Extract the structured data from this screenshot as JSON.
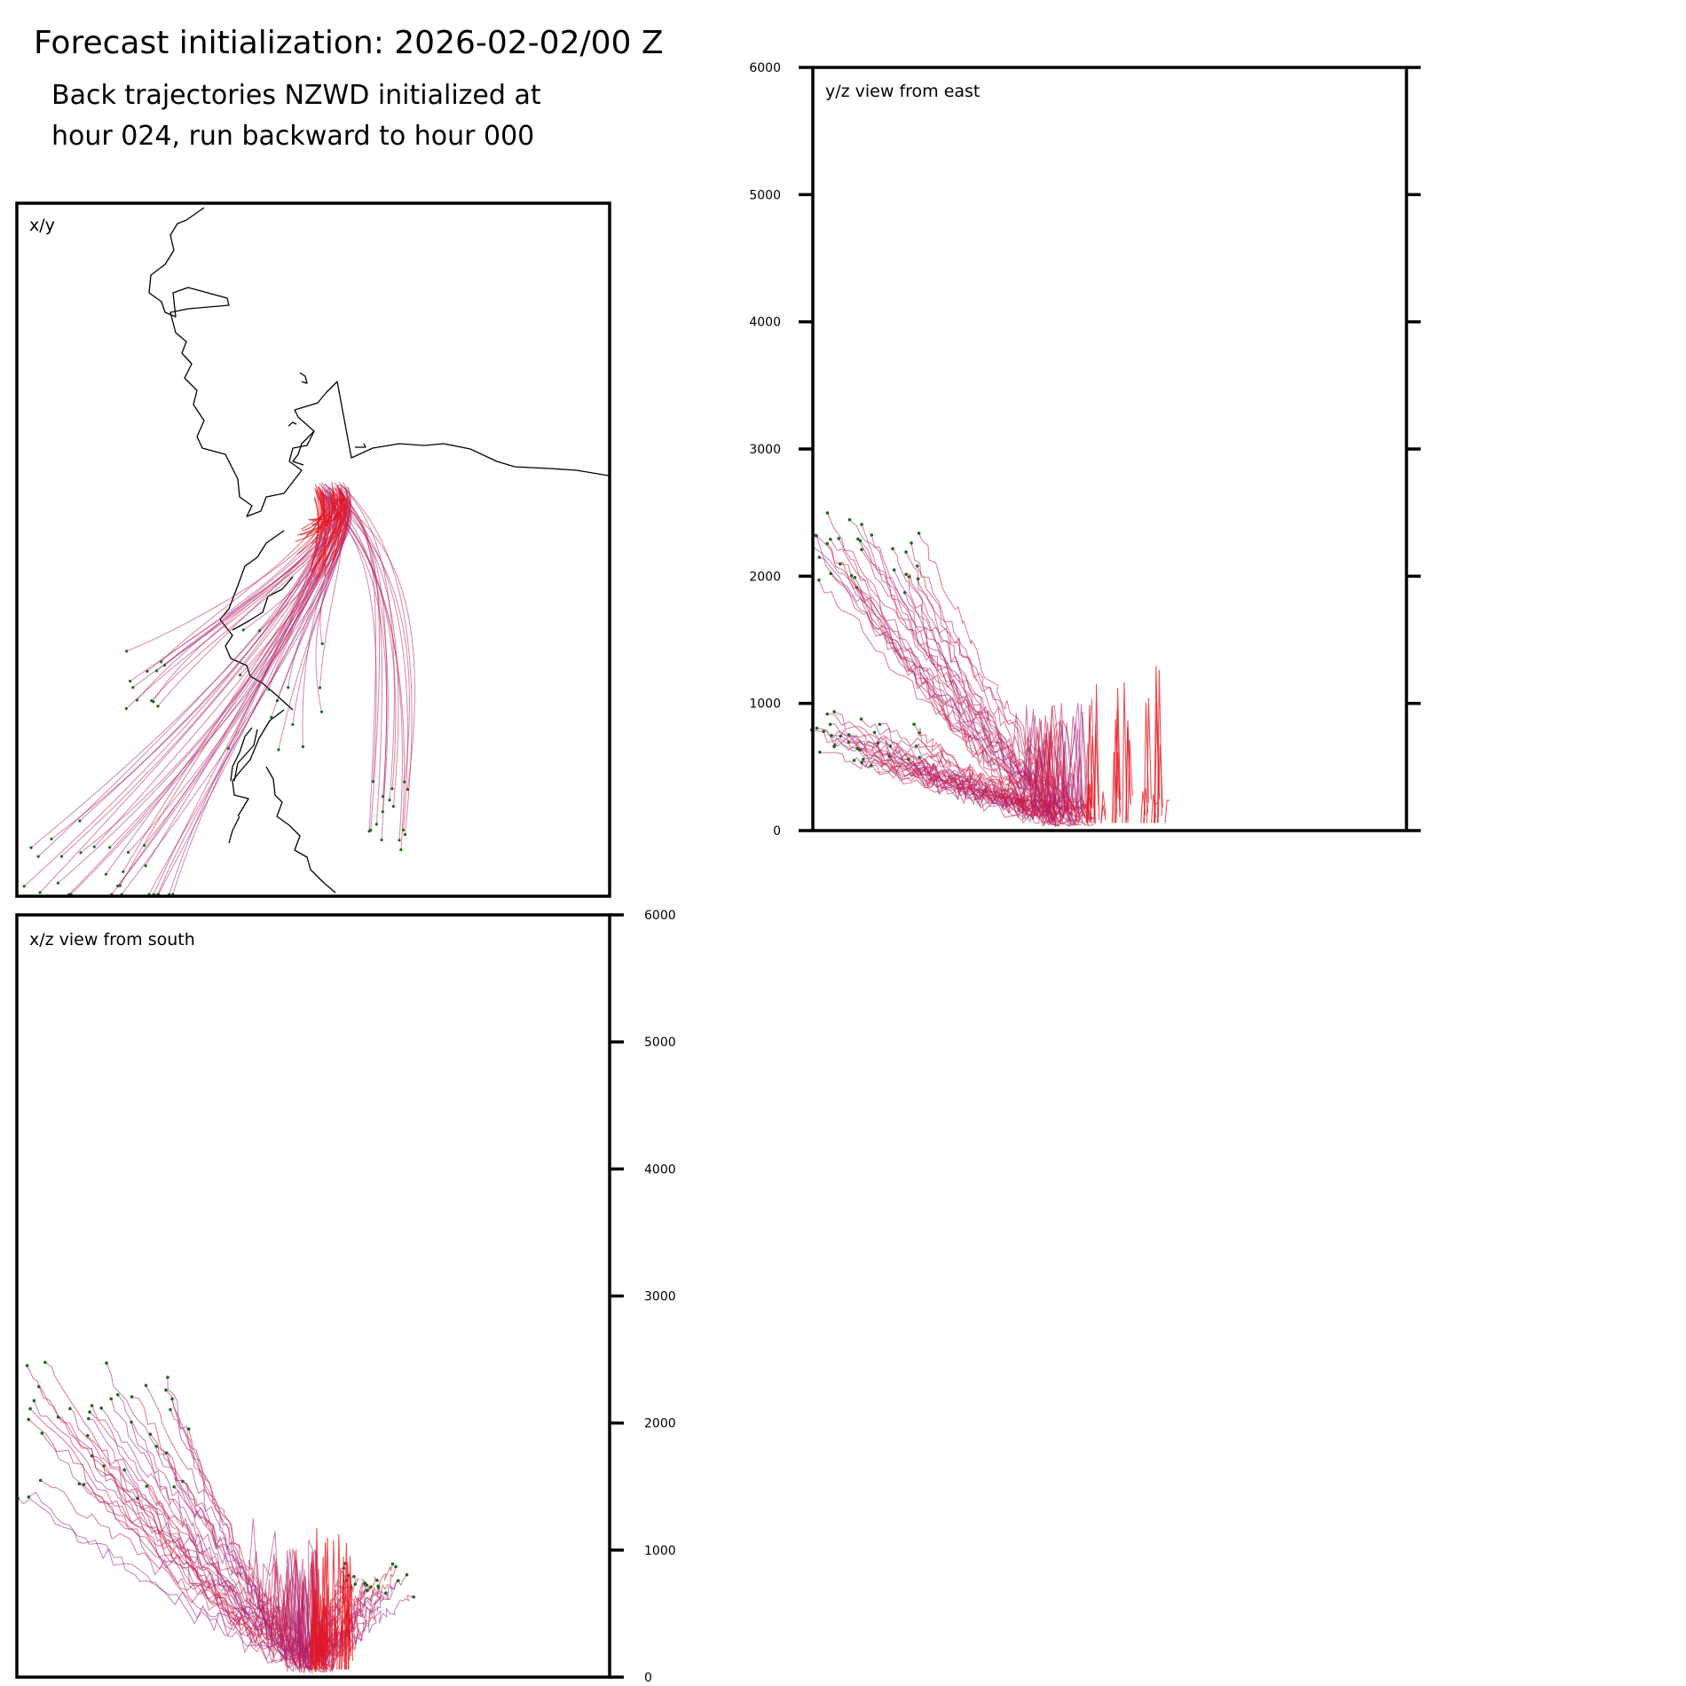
{
  "header": {
    "title": "Forecast initialization: 2026-02-02/00 Z",
    "subtitle_line1": "Back trajectories NZWD initialized at",
    "subtitle_line2": "hour 024, run backward to hour 000"
  },
  "colors": {
    "trajectory_start": "#e8141c",
    "trajectory_end": "#8e2aa0",
    "endpoint": "#1b6b1b",
    "coastline": "#000000",
    "frame": "#000000"
  },
  "chart_data": [
    {
      "type": "line",
      "panel": "xy",
      "title": "x/y",
      "description_note": "horizontal map of back trajectories",
      "ylim": [
        0,
        1
      ],
      "xlim": [
        0,
        1
      ]
    },
    {
      "type": "line",
      "panel": "yz",
      "title": "y/z view from east",
      "ylabel": "",
      "ylim": [
        0,
        6000
      ],
      "yticks": [
        0,
        1000,
        2000,
        3000,
        4000,
        5000,
        6000
      ],
      "ytick_labels": [
        "0",
        "1000",
        "2000",
        "3000",
        "4000",
        "5000",
        "6000"
      ]
    },
    {
      "type": "line",
      "panel": "xz",
      "title": "x/z view from south",
      "ylabel": "",
      "ylim": [
        0,
        6000
      ],
      "yticks": [
        0,
        1000,
        2000,
        3000,
        4000,
        5000,
        6000
      ],
      "ytick_labels": [
        "0",
        "1000",
        "2000",
        "3000",
        "4000",
        "5000",
        "6000"
      ]
    }
  ]
}
